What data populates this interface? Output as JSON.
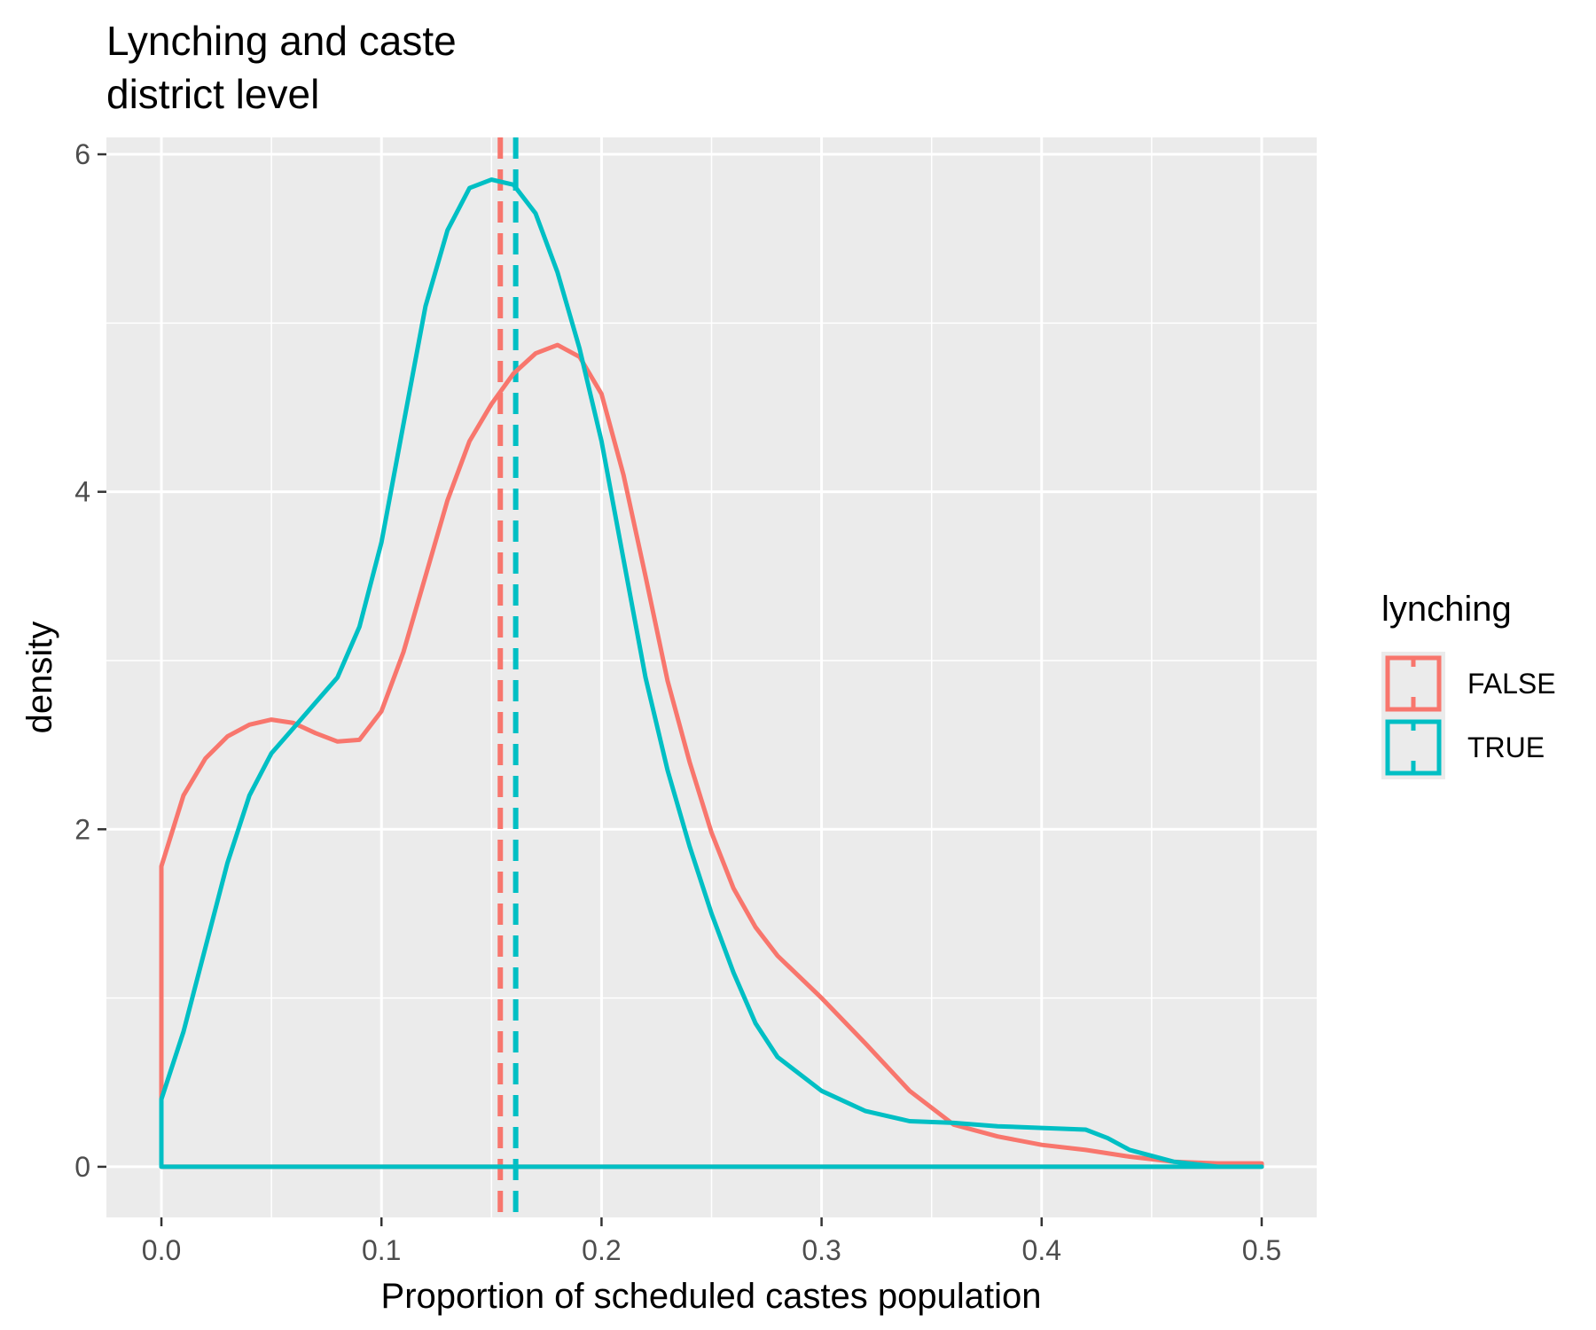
{
  "chart_data": {
    "type": "line",
    "subtype": "density",
    "title": "Lynching and caste\ndistrict level",
    "title_lines": [
      "Lynching and caste",
      "district level"
    ],
    "xlabel": "Proportion of scheduled castes population",
    "ylabel": "density",
    "xlim": [
      -0.025,
      0.525
    ],
    "ylim": [
      -0.3,
      6.1
    ],
    "x_ticks": [
      0.0,
      0.1,
      0.2,
      0.3,
      0.4,
      0.5
    ],
    "x_tick_labels": [
      "0.0",
      "0.1",
      "0.2",
      "0.3",
      "0.4",
      "0.5"
    ],
    "y_ticks": [
      0,
      2,
      4,
      6
    ],
    "y_tick_labels": [
      "0",
      "2",
      "4",
      "6"
    ],
    "grid": true,
    "background": "#ebebeb",
    "legend": {
      "title": "lynching",
      "placement": "right",
      "entries": [
        "FALSE",
        "TRUE"
      ]
    },
    "series": [
      {
        "name": "FALSE",
        "color": "#f8766d",
        "mean": 0.154,
        "x": [
          0.0,
          0.0,
          0.01,
          0.02,
          0.03,
          0.04,
          0.05,
          0.06,
          0.07,
          0.08,
          0.09,
          0.1,
          0.11,
          0.12,
          0.13,
          0.14,
          0.15,
          0.16,
          0.17,
          0.18,
          0.19,
          0.2,
          0.21,
          0.22,
          0.23,
          0.24,
          0.25,
          0.26,
          0.27,
          0.28,
          0.3,
          0.32,
          0.34,
          0.36,
          0.38,
          0.4,
          0.42,
          0.44,
          0.46,
          0.48,
          0.5,
          0.5
        ],
        "y": [
          0.0,
          1.78,
          2.2,
          2.42,
          2.55,
          2.62,
          2.65,
          2.63,
          2.57,
          2.52,
          2.53,
          2.7,
          3.05,
          3.5,
          3.95,
          4.3,
          4.52,
          4.7,
          4.82,
          4.87,
          4.8,
          4.58,
          4.1,
          3.5,
          2.88,
          2.4,
          1.98,
          1.65,
          1.42,
          1.25,
          1.0,
          0.73,
          0.45,
          0.25,
          0.18,
          0.13,
          0.1,
          0.06,
          0.03,
          0.02,
          0.02,
          0.0
        ]
      },
      {
        "name": "TRUE",
        "color": "#00bfc4",
        "mean": 0.161,
        "x": [
          0.0,
          0.0,
          0.01,
          0.02,
          0.03,
          0.04,
          0.05,
          0.06,
          0.07,
          0.08,
          0.09,
          0.1,
          0.11,
          0.12,
          0.13,
          0.14,
          0.15,
          0.16,
          0.17,
          0.18,
          0.19,
          0.2,
          0.21,
          0.22,
          0.23,
          0.24,
          0.25,
          0.26,
          0.27,
          0.28,
          0.3,
          0.32,
          0.34,
          0.36,
          0.38,
          0.4,
          0.42,
          0.43,
          0.44,
          0.46,
          0.48,
          0.5,
          0.5
        ],
        "y": [
          0.0,
          0.4,
          0.8,
          1.3,
          1.8,
          2.2,
          2.45,
          2.6,
          2.75,
          2.9,
          3.2,
          3.7,
          4.4,
          5.1,
          5.55,
          5.8,
          5.85,
          5.82,
          5.65,
          5.3,
          4.85,
          4.3,
          3.6,
          2.9,
          2.35,
          1.9,
          1.5,
          1.15,
          0.85,
          0.65,
          0.45,
          0.33,
          0.27,
          0.26,
          0.24,
          0.23,
          0.22,
          0.17,
          0.1,
          0.03,
          0.0,
          0.0,
          0.0
        ]
      }
    ]
  }
}
